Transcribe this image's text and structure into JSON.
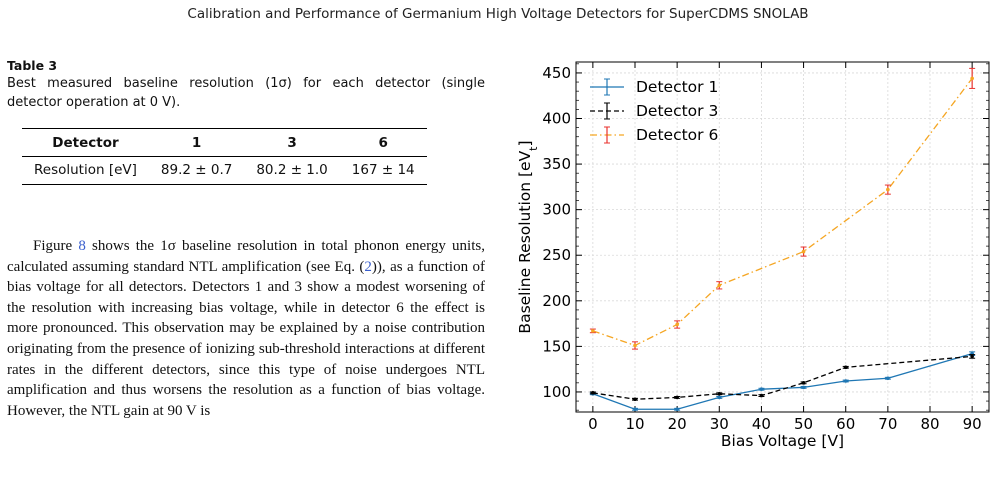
{
  "header": "Calibration and Performance of Germanium High Voltage Detectors for SuperCDMS SNOLAB",
  "table": {
    "label": "Table 3",
    "caption": "Best measured baseline resolution (1σ) for each detector (single detector operation at 0 V).",
    "headers": [
      "Detector",
      "1",
      "3",
      "6"
    ],
    "row": [
      "Resolution [eV]",
      "89.2 ± 0.7",
      "80.2 ± 1.0",
      "167 ± 14"
    ]
  },
  "paragraph": {
    "before_fig": "Figure ",
    "fig_ref": "8",
    "after_fig": " shows the 1σ baseline resolution in total phonon energy units, calculated assuming standard NTL amplification (see Eq. (",
    "eq_ref": "2",
    "rest": ")), as a function of bias voltage for all detectors. Detectors 1 and 3 show a modest worsening of the resolution with increasing bias voltage, while in detector 6 the effect is more pronounced. This observation may be explained by a noise contribution originating from the presence of ionizing sub-threshold interactions at different rates in the different detectors, since this type of noise undergoes NTL amplification and thus worsens the resolution as a function of bias voltage. However, the NTL gain at 90 V is"
  },
  "chart_data": {
    "type": "line",
    "xlabel": "Bias Voltage [V]",
    "ylabel": "Baseline Resolution [eV",
    "ylabel_sub": "t",
    "ylabel_end": "]",
    "xlim": [
      -4,
      94
    ],
    "ylim": [
      78,
      462
    ],
    "xticks": [
      0,
      10,
      20,
      30,
      40,
      50,
      60,
      70,
      80,
      90
    ],
    "yticks": [
      100,
      150,
      200,
      250,
      300,
      350,
      400,
      450
    ],
    "grid": true,
    "legend_position": "top-left",
    "series": [
      {
        "name": "Detector 1",
        "color": "#1f77b4",
        "style": "solid",
        "err_color": "#1f77b4",
        "x": [
          0,
          10,
          20,
          30,
          40,
          50,
          60,
          70,
          90
        ],
        "y": [
          98,
          81,
          81,
          94,
          103,
          105,
          112,
          115,
          142
        ],
        "err": [
          1,
          1,
          1,
          1,
          1,
          1,
          1,
          1,
          2
        ]
      },
      {
        "name": "Detector 3",
        "color": "#000000",
        "style": "dashed",
        "err_color": "#000000",
        "x": [
          0,
          10,
          20,
          30,
          40,
          50,
          60,
          90
        ],
        "y": [
          99,
          92,
          94,
          98,
          96,
          110,
          127,
          139
        ],
        "err": [
          1,
          1,
          1,
          1,
          1,
          1,
          1,
          2
        ]
      },
      {
        "name": "Detector 6",
        "color": "#f5a623",
        "style": "dashdot",
        "err_color": "#e8322d",
        "x": [
          0,
          10,
          20,
          30,
          50,
          70,
          90
        ],
        "y": [
          167,
          151,
          174,
          217,
          254,
          322,
          444
        ],
        "err": [
          2,
          4,
          4,
          4,
          5,
          5,
          11
        ]
      }
    ]
  }
}
